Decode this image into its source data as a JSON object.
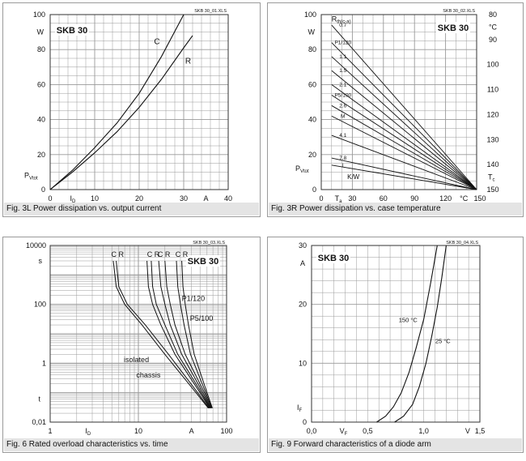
{
  "chart_data": [
    {
      "type": "line",
      "caption": "Fig. 3L Power dissipation vs. output current",
      "file_tag": "SKB 30_01.XLS",
      "badge": "SKB 30",
      "xlim": [
        0,
        40
      ],
      "ylim": [
        0,
        100
      ],
      "x_ticks": [
        "0",
        "10",
        "20",
        "30",
        "40"
      ],
      "x_unit": "A",
      "xlabel_main": "I",
      "xlabel_sub": "D",
      "y_ticks": [
        "0",
        "20",
        "40",
        "60",
        "80",
        "100"
      ],
      "y_unit": "W",
      "ylabel_main": "P",
      "ylabel_sub": "Vtot",
      "series": [
        {
          "name": "C",
          "x": [
            0,
            5,
            10,
            15,
            20,
            25,
            30
          ],
          "y": [
            0,
            11,
            24,
            38,
            55,
            76,
            100
          ]
        },
        {
          "name": "R",
          "x": [
            0,
            5,
            10,
            15,
            20,
            25,
            30,
            32
          ],
          "y": [
            0,
            10,
            21,
            33,
            47,
            63,
            81,
            88
          ]
        }
      ]
    },
    {
      "type": "line",
      "caption": "Fig. 3R Power dissipation vs. case temperature",
      "file_tag": "SKB 30_02.XLS",
      "badge": "SKB 30",
      "xlim": [
        0,
        150
      ],
      "ylim": [
        0,
        100
      ],
      "x_ticks": [
        "0",
        "30",
        "60",
        "90",
        "120",
        "150"
      ],
      "x_unit": "°C",
      "xlabel_main": "T",
      "xlabel_sub": "a",
      "y_ticks": [
        "0",
        "20",
        "40",
        "60",
        "80",
        "100"
      ],
      "y_unit": "W",
      "ylabel_main": "P",
      "ylabel_sub": "Vtot",
      "right_ticks": [
        "80",
        "90",
        "100",
        "110",
        "120",
        "130",
        "140",
        "150"
      ],
      "right_unit": "°C",
      "right_label_main": "T",
      "right_label_sub": "c",
      "rth_label": "R",
      "rth_sub": "th(c-a)",
      "rth_unit": "K/W",
      "series": [
        {
          "name": "0.7",
          "y0": 94
        },
        {
          "name": "P1/120",
          "y0": 84
        },
        {
          "name": "1.1",
          "y0": 76
        },
        {
          "name": "1.5",
          "y0": 68
        },
        {
          "name": "2.1",
          "y0": 60
        },
        {
          "name": "P5/100",
          "y0": 54
        },
        {
          "name": "2.6",
          "y0": 48
        },
        {
          "name": "M",
          "y0": 42
        },
        {
          "name": "4.1",
          "y0": 31
        },
        {
          "name": "7.8",
          "y0": 18
        },
        {
          "name": "I",
          "y0": 14
        }
      ]
    },
    {
      "type": "line",
      "caption": "Fig. 6 Rated overload characteristics vs. time",
      "file_tag": "SKB 30_03.XLS",
      "badge": "SKB 30",
      "xlim": [
        1,
        100
      ],
      "ylim": [
        0.01,
        10000
      ],
      "xscale": "log",
      "yscale": "log",
      "x_ticks": [
        "1",
        "10",
        "100"
      ],
      "x_unit": "A",
      "xlabel_main": "I",
      "xlabel_sub": "D",
      "y_ticks": [
        "0,01",
        "1",
        "100",
        "10000"
      ],
      "y_unit": "s",
      "ylabel_main": "t",
      "curve_labels": [
        "C R",
        "C R",
        "C R",
        "C R"
      ],
      "annotations": [
        "P1/120",
        "P5/100",
        "isolated",
        "chassis"
      ],
      "series": [
        {
          "name": "C",
          "x": [
            5.2,
            5.6,
            7,
            11,
            20,
            45,
            62
          ],
          "y": [
            3000,
            400,
            100,
            20,
            2,
            0.1,
            0.03
          ]
        },
        {
          "name": "R",
          "x": [
            5.6,
            6,
            7.5,
            12,
            22,
            47,
            63
          ],
          "y": [
            3000,
            400,
            100,
            20,
            2,
            0.1,
            0.03
          ]
        },
        {
          "name": "C",
          "x": [
            12.5,
            13,
            14.5,
            18,
            26,
            50,
            64
          ],
          "y": [
            3000,
            400,
            100,
            20,
            2,
            0.1,
            0.03
          ]
        },
        {
          "name": "R",
          "x": [
            14,
            14.5,
            16,
            20,
            28,
            52,
            65
          ],
          "y": [
            3000,
            400,
            100,
            20,
            2,
            0.1,
            0.03
          ]
        },
        {
          "name": "C",
          "x": [
            17,
            18,
            20,
            23,
            31,
            54,
            66
          ],
          "y": [
            3000,
            400,
            100,
            20,
            2,
            0.1,
            0.03
          ]
        },
        {
          "name": "R",
          "x": [
            20,
            21,
            23,
            26,
            34,
            56,
            67
          ],
          "y": [
            3000,
            400,
            100,
            20,
            2,
            0.1,
            0.03
          ]
        },
        {
          "name": "C",
          "x": [
            27,
            28,
            30,
            33,
            39,
            58,
            68
          ],
          "y": [
            3000,
            400,
            100,
            20,
            2,
            0.1,
            0.03
          ]
        },
        {
          "name": "R",
          "x": [
            31,
            32,
            34,
            37,
            43,
            60,
            69
          ],
          "y": [
            3000,
            400,
            100,
            20,
            2,
            0.1,
            0.03
          ]
        }
      ]
    },
    {
      "type": "line",
      "caption": "Fig. 9 Forward characteristics of a diode arm",
      "file_tag": "SKB 30_04.XLS",
      "badge": "SKB 30",
      "xlim": [
        0,
        1.5
      ],
      "ylim": [
        0,
        30
      ],
      "x_ticks": [
        "0,0",
        "0,5",
        "1,0",
        "1,5"
      ],
      "x_unit": "V",
      "xlabel_main": "V",
      "xlabel_sub": "F",
      "y_ticks": [
        "0",
        "10",
        "20",
        "30"
      ],
      "y_unit": "A",
      "ylabel_main": "I",
      "ylabel_sub": "F",
      "series": [
        {
          "name": "150 °C",
          "x": [
            0.58,
            0.66,
            0.73,
            0.8,
            0.87,
            0.93,
            1.0,
            1.06,
            1.12
          ],
          "y": [
            0,
            1,
            2.6,
            5,
            8.5,
            12.5,
            17.5,
            23.5,
            30
          ]
        },
        {
          "name": "25 °C",
          "x": [
            0.74,
            0.82,
            0.9,
            0.96,
            1.02,
            1.07,
            1.12,
            1.16,
            1.2
          ],
          "y": [
            0,
            1,
            3,
            6,
            10,
            14.5,
            19.5,
            24.5,
            30
          ]
        }
      ]
    }
  ]
}
